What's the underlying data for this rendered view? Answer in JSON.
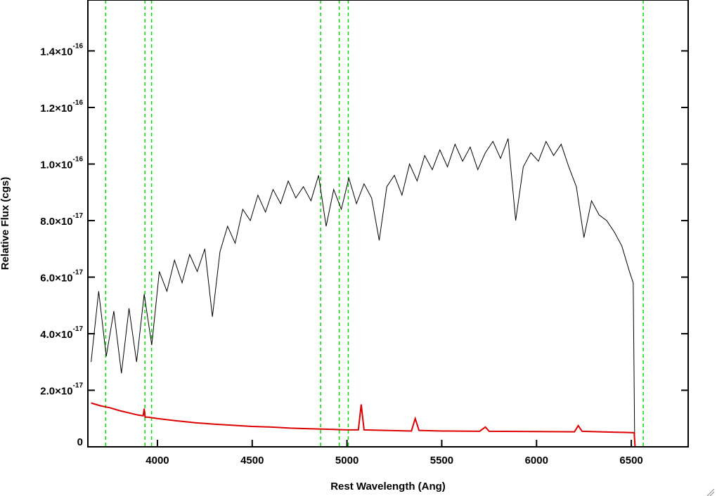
{
  "chart_data": {
    "type": "line",
    "x_label": "Rest Wavelength (Ang)",
    "y_label": "Relative Flux (cgs)",
    "xlim": [
      3633,
      6800
    ],
    "ylim": [
      0,
      1.58e-16
    ],
    "xticks": [
      4000,
      4500,
      5000,
      5500,
      6000,
      6500
    ],
    "yticks": [
      0,
      {
        "value": 2e-17,
        "label": "2.0×10",
        "exponent": "-17"
      },
      {
        "value": 4e-17,
        "label": "4.0×10",
        "exponent": "-17"
      },
      {
        "value": 6e-17,
        "label": "6.0×10",
        "exponent": "-17"
      },
      {
        "value": 8e-17,
        "label": "8.0×10",
        "exponent": "-17"
      },
      {
        "value": 1e-16,
        "label": "1.0×10",
        "exponent": "-16"
      },
      {
        "value": 1.2e-16,
        "label": "1.2×10",
        "exponent": "-16"
      },
      {
        "value": 1.4e-16,
        "label": "1.4×10",
        "exponent": "-16"
      }
    ],
    "vlines": {
      "x": [
        3727,
        3934,
        3969,
        4861,
        4959,
        5007,
        6563
      ],
      "color": "#00dd00"
    },
    "series": [
      {
        "color": "#000000",
        "x": [
          3650,
          3690,
          3730,
          3770,
          3810,
          3850,
          3890,
          3930,
          3970,
          4010,
          4050,
          4090,
          4130,
          4170,
          4210,
          4250,
          4290,
          4330,
          4370,
          4410,
          4450,
          4490,
          4530,
          4570,
          4610,
          4650,
          4690,
          4730,
          4770,
          4810,
          4850,
          4890,
          4930,
          4970,
          5010,
          5050,
          5090,
          5130,
          5170,
          5210,
          5250,
          5290,
          5330,
          5370,
          5410,
          5450,
          5490,
          5530,
          5570,
          5610,
          5650,
          5690,
          5730,
          5770,
          5810,
          5850,
          5890,
          5930,
          5970,
          6010,
          6050,
          6090,
          6130,
          6170,
          6210,
          6250,
          6290,
          6330,
          6370,
          6410,
          6450,
          6490,
          6510,
          6518
        ],
        "values": [
          3e-17,
          5.5e-17,
          3.2e-17,
          4.8e-17,
          2.6e-17,
          4.9e-17,
          3e-17,
          5.4e-17,
          3.6e-17,
          6.2e-17,
          5.5e-17,
          6.6e-17,
          5.8e-17,
          6.8e-17,
          6.2e-17,
          7e-17,
          4.6e-17,
          6.9e-17,
          7.8e-17,
          7.2e-17,
          8.4e-17,
          8e-17,
          8.9e-17,
          8.3e-17,
          9.1e-17,
          8.6e-17,
          9.4e-17,
          8.8e-17,
          9.2e-17,
          8.7e-17,
          9.6e-17,
          7.8e-17,
          9.1e-17,
          8.4e-17,
          9.5e-17,
          8.6e-17,
          9.3e-17,
          8.8e-17,
          7.3e-17,
          9.2e-17,
          9.6e-17,
          8.9e-17,
          1e-16,
          9.4e-17,
          1.03e-16,
          9.8e-17,
          1.05e-16,
          9.9e-17,
          1.07e-16,
          1.01e-16,
          1.06e-16,
          9.8e-17,
          1.04e-16,
          1.08e-16,
          1.02e-16,
          1.09e-16,
          8e-17,
          9.9e-17,
          1.04e-16,
          1.01e-16,
          1.08e-16,
          1.03e-16,
          1.07e-16,
          9.9e-17,
          9.2e-17,
          7.4e-17,
          8.7e-17,
          8.2e-17,
          8e-17,
          7.6e-17,
          7.1e-17,
          6.2e-17,
          5.8e-17,
          0
        ]
      },
      {
        "color": "#dd0000",
        "x": [
          3650,
          3700,
          3750,
          3800,
          3850,
          3900,
          3925,
          3930,
          3935,
          3950,
          4000,
          4100,
          4200,
          4300,
          4400,
          4500,
          4600,
          4700,
          4800,
          4900,
          5000,
          5060,
          5075,
          5090,
          5200,
          5340,
          5360,
          5380,
          5500,
          5700,
          5730,
          5750,
          6000,
          6200,
          6220,
          6240,
          6400,
          6515,
          6520,
          6800
        ],
        "values": [
          1.55e-17,
          1.45e-17,
          1.38e-17,
          1.28e-17,
          1.2e-17,
          1.12e-17,
          1.1e-17,
          1.35e-17,
          1.05e-17,
          1.05e-17,
          1e-17,
          9.2e-18,
          8.5e-18,
          8e-18,
          7.6e-18,
          7.2e-18,
          7e-18,
          6.6e-18,
          6.4e-18,
          6.2e-18,
          6e-18,
          6e-18,
          1.5e-17,
          6e-18,
          5.8e-18,
          5.6e-18,
          1e-17,
          5.8e-18,
          5.6e-18,
          5.5e-18,
          7e-18,
          5.5e-18,
          5.4e-18,
          5.3e-18,
          7.5e-18,
          5.5e-18,
          5.2e-18,
          5e-18,
          0,
          0
        ]
      }
    ]
  }
}
